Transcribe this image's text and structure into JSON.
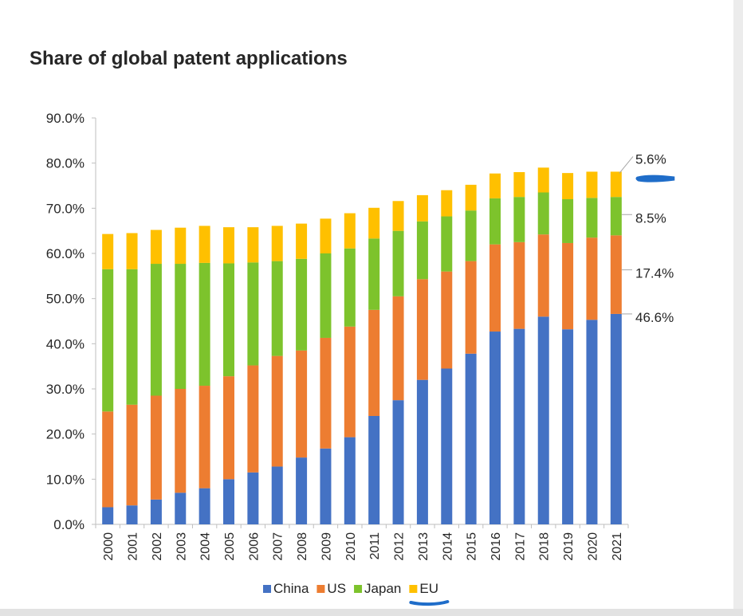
{
  "page": {
    "title": "Share of global patent applications"
  },
  "chart_data": {
    "type": "bar",
    "stacked": true,
    "title": "Share of global patent applications",
    "xlabel": "",
    "ylabel": "",
    "ylim": [
      0,
      90
    ],
    "yticks": [
      "0.0%",
      "10.0%",
      "20.0%",
      "30.0%",
      "40.0%",
      "50.0%",
      "60.0%",
      "70.0%",
      "80.0%",
      "90.0%"
    ],
    "categories": [
      "2000",
      "2001",
      "2002",
      "2003",
      "2004",
      "2005",
      "2006",
      "2007",
      "2008",
      "2009",
      "2010",
      "2011",
      "2012",
      "2013",
      "2014",
      "2015",
      "2016",
      "2017",
      "2018",
      "2019",
      "2020",
      "2021"
    ],
    "series": [
      {
        "name": "China",
        "color": "#4472c4",
        "values": [
          3.8,
          4.2,
          5.5,
          7.0,
          8.0,
          10.0,
          11.5,
          12.8,
          14.8,
          16.8,
          19.3,
          24.0,
          27.5,
          32.0,
          34.5,
          37.8,
          42.7,
          43.3,
          46.0,
          43.2,
          45.3,
          46.6
        ]
      },
      {
        "name": "US",
        "color": "#ed7d31",
        "values": [
          21.2,
          22.3,
          23.0,
          23.0,
          22.7,
          22.8,
          23.7,
          24.5,
          23.7,
          24.5,
          24.5,
          23.5,
          23.0,
          22.3,
          21.5,
          20.5,
          19.3,
          19.2,
          18.2,
          19.1,
          18.2,
          17.4
        ]
      },
      {
        "name": "Japan",
        "color": "#7dc32c",
        "values": [
          31.5,
          30.0,
          29.2,
          27.7,
          27.2,
          25.0,
          22.8,
          21.0,
          20.3,
          18.7,
          17.3,
          15.8,
          14.5,
          12.8,
          12.2,
          11.2,
          10.2,
          10.0,
          9.3,
          9.7,
          8.8,
          8.5
        ]
      },
      {
        "name": "EU",
        "color": "#ffc000",
        "values": [
          7.8,
          8.0,
          7.5,
          8.0,
          8.2,
          8.0,
          7.8,
          7.8,
          7.8,
          7.7,
          7.8,
          6.8,
          6.6,
          5.8,
          5.8,
          5.7,
          5.5,
          5.5,
          5.5,
          5.8,
          5.8,
          5.6
        ]
      }
    ],
    "annotations": [
      {
        "series": "EU",
        "label": "5.6%"
      },
      {
        "series": "Japan",
        "label": "8.5%"
      },
      {
        "series": "US",
        "label": "17.4%"
      },
      {
        "series": "China",
        "label": "46.6%"
      }
    ],
    "legend": {
      "position": "bottom-center",
      "underlined": "EU"
    },
    "highlight_marks": [
      {
        "type": "handwritten-underline",
        "near": "5.6%"
      }
    ],
    "colors": {
      "axis": "#bfbfbf",
      "text": "#262626",
      "pen": "#1f6dc9"
    }
  }
}
